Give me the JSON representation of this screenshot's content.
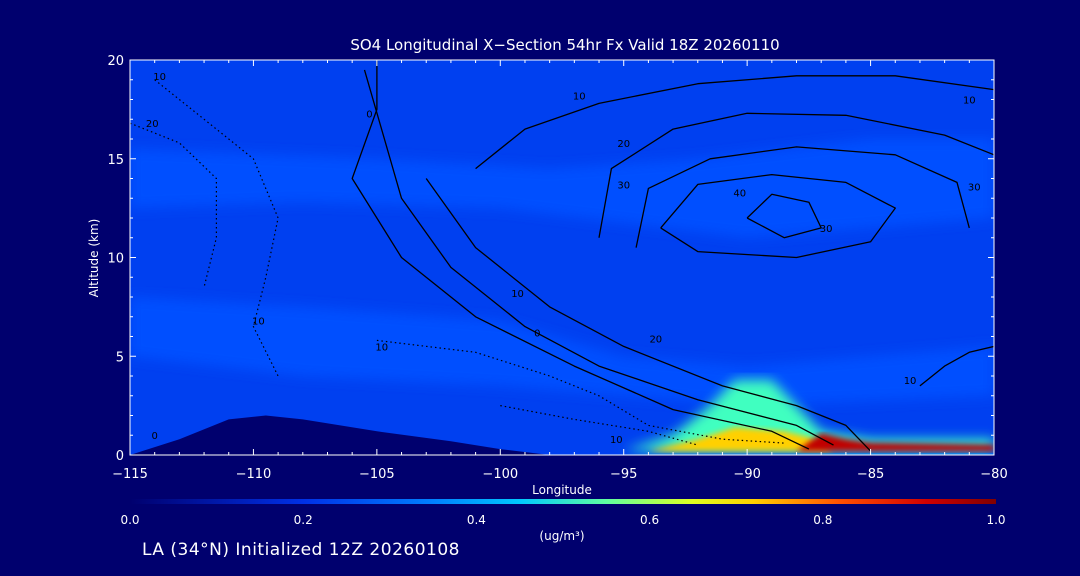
{
  "chart_data": {
    "type": "heatmap",
    "title": "SO4 Longitudinal X−Section 54hr  Fx Valid 18Z 20260110",
    "xlabel": "Longitude",
    "ylabel": "Altitude (km)",
    "xlim": [
      -115,
      -80
    ],
    "ylim": [
      0,
      20
    ],
    "x_ticks": [
      -115,
      -110,
      -105,
      -100,
      -95,
      -90,
      -85,
      -80
    ],
    "x_tick_labels": [
      "−115",
      "−110",
      "−105",
      "−100",
      "−95",
      "−90",
      "−85",
      "−80"
    ],
    "y_ticks": [
      0,
      5,
      10,
      15,
      20
    ],
    "y_tick_labels": [
      "0",
      "5",
      "10",
      "15",
      "20"
    ],
    "colorbar": {
      "label": "(ug/m³)",
      "min": 0.0,
      "max": 1.0,
      "ticks": [
        0.0,
        0.2,
        0.4,
        0.6,
        0.8,
        1.0
      ],
      "tick_labels": [
        "0.0",
        "0.2",
        "0.4",
        "0.6",
        "0.8",
        "1.0"
      ],
      "colors": [
        "#00006e",
        "#0020c8",
        "#0050ff",
        "#00b4ff",
        "#40ffc0",
        "#c0ff40",
        "#ffd000",
        "#ff5000",
        "#c00000",
        "#800000"
      ]
    },
    "fill_regions": [
      {
        "name": "upper-band",
        "value": 0.25,
        "points": [
          [
            -115,
            15.5
          ],
          [
            -105,
            15
          ],
          [
            -98,
            14.5
          ],
          [
            -92,
            15
          ],
          [
            -85,
            16
          ],
          [
            -80,
            16
          ],
          [
            -80,
            12
          ],
          [
            -90,
            11
          ],
          [
            -100,
            12.5
          ],
          [
            -108,
            12.8
          ],
          [
            -115,
            12.5
          ]
        ]
      },
      {
        "name": "mid-band",
        "value": 0.2,
        "points": [
          [
            -115,
            8
          ],
          [
            -108,
            7.5
          ],
          [
            -100,
            6.8
          ],
          [
            -95,
            5
          ],
          [
            -90,
            4.5
          ],
          [
            -85,
            5
          ],
          [
            -80,
            5.5
          ],
          [
            -80,
            3
          ],
          [
            -90,
            2.5
          ],
          [
            -100,
            3.5
          ],
          [
            -108,
            4
          ],
          [
            -115,
            5
          ]
        ]
      },
      {
        "name": "pbl-plume",
        "value": 0.45,
        "points": [
          [
            -95,
            0.2
          ],
          [
            -93,
            1
          ],
          [
            -91.5,
            2.5
          ],
          [
            -90.5,
            3.8
          ],
          [
            -89,
            3.8
          ],
          [
            -88,
            2.5
          ],
          [
            -87,
            1.2
          ],
          [
            -85,
            0.8
          ],
          [
            -80,
            0.8
          ],
          [
            -80,
            0.2
          ]
        ]
      },
      {
        "name": "pbl-core",
        "value": 0.65,
        "points": [
          [
            -94,
            0.2
          ],
          [
            -92,
            0.8
          ],
          [
            -90.5,
            1.4
          ],
          [
            -88.5,
            1.2
          ],
          [
            -87.5,
            0.9
          ],
          [
            -86.5,
            0.2
          ]
        ]
      },
      {
        "name": "pbl-max",
        "value": 0.9,
        "points": [
          [
            -88,
            0.2
          ],
          [
            -87,
            1.1
          ],
          [
            -86,
            0.8
          ],
          [
            -85,
            0.6
          ],
          [
            -80,
            0.5
          ],
          [
            -80,
            0.2
          ]
        ]
      },
      {
        "name": "terrain",
        "value": 0.0,
        "points": [
          [
            -115,
            0
          ],
          [
            -113,
            0.8
          ],
          [
            -111,
            1.8
          ],
          [
            -109.5,
            2.0
          ],
          [
            -108,
            1.8
          ],
          [
            -105,
            1.2
          ],
          [
            -102,
            0.7
          ],
          [
            -100,
            0.3
          ],
          [
            -98,
            0
          ],
          [
            -115,
            0
          ]
        ]
      }
    ],
    "contours": [
      {
        "value": 10,
        "style": "solid",
        "points": [
          [
            -101,
            14.5
          ],
          [
            -99,
            16.5
          ],
          [
            -96,
            17.8
          ],
          [
            -92,
            18.8
          ],
          [
            -88,
            19.2
          ],
          [
            -84,
            19.2
          ],
          [
            -80,
            18.5
          ]
        ]
      },
      {
        "value": 20,
        "style": "solid",
        "points": [
          [
            -96,
            11
          ],
          [
            -95.5,
            14.5
          ],
          [
            -93,
            16.5
          ],
          [
            -90,
            17.3
          ],
          [
            -86,
            17.2
          ],
          [
            -82,
            16.2
          ],
          [
            -80,
            15.2
          ]
        ]
      },
      {
        "value": 30,
        "style": "solid",
        "points": [
          [
            -94.5,
            10.5
          ],
          [
            -94,
            13.5
          ],
          [
            -91.5,
            15
          ],
          [
            -88,
            15.6
          ],
          [
            -84,
            15.2
          ],
          [
            -81.5,
            13.8
          ],
          [
            -81,
            11.5
          ]
        ]
      },
      {
        "value": 40,
        "style": "solid",
        "points": [
          [
            -93.5,
            11.5
          ],
          [
            -92,
            13.7
          ],
          [
            -89,
            14.2
          ],
          [
            -86,
            13.8
          ],
          [
            -84,
            12.5
          ],
          [
            -85,
            10.8
          ],
          [
            -88,
            10
          ],
          [
            -92,
            10.3
          ],
          [
            -93.5,
            11.5
          ]
        ]
      },
      {
        "value": 50,
        "style": "solid",
        "points": [
          [
            -90,
            12
          ],
          [
            -89,
            13.2
          ],
          [
            -87.5,
            12.8
          ],
          [
            -87,
            11.5
          ],
          [
            -88.5,
            11
          ],
          [
            -90,
            12
          ]
        ]
      },
      {
        "value": 20,
        "style": "solid",
        "points": [
          [
            -103,
            14
          ],
          [
            -101,
            10.5
          ],
          [
            -98,
            7.5
          ],
          [
            -95,
            5.5
          ],
          [
            -91,
            3.5
          ],
          [
            -88,
            2.5
          ],
          [
            -86,
            1.5
          ],
          [
            -85,
            0.2
          ]
        ]
      },
      {
        "value": 10,
        "style": "solid",
        "points": [
          [
            -105.5,
            19.5
          ],
          [
            -104,
            13
          ],
          [
            -102,
            9.5
          ],
          [
            -99,
            6.5
          ],
          [
            -96,
            4.5
          ],
          [
            -92,
            2.8
          ],
          [
            -88,
            1.5
          ],
          [
            -86.5,
            0.5
          ]
        ]
      },
      {
        "value": 0,
        "style": "solid",
        "points": [
          [
            -105,
            20
          ],
          [
            -105,
            17.5
          ],
          [
            -106,
            14
          ],
          [
            -104,
            10
          ],
          [
            -101,
            7
          ],
          [
            -97,
            4.5
          ],
          [
            -93,
            2.3
          ],
          [
            -89,
            1.2
          ],
          [
            -87.5,
            0.3
          ]
        ]
      },
      {
        "value": 10,
        "style": "solid",
        "points": [
          [
            -83,
            3.5
          ],
          [
            -82,
            4.5
          ],
          [
            -81,
            5.2
          ],
          [
            -80,
            5.5
          ]
        ]
      },
      {
        "value": -10,
        "style": "dotted",
        "points": [
          [
            -114,
            19
          ],
          [
            -112,
            17
          ],
          [
            -110,
            15
          ],
          [
            -109,
            12
          ],
          [
            -109.5,
            9
          ],
          [
            -110,
            6.5
          ],
          [
            -109,
            4
          ]
        ]
      },
      {
        "value": -20,
        "style": "dotted",
        "points": [
          [
            -115,
            16.8
          ],
          [
            -113,
            15.8
          ],
          [
            -111.5,
            14
          ],
          [
            -111.5,
            11
          ],
          [
            -112,
            8.5
          ]
        ]
      },
      {
        "value": -10,
        "style": "dotted",
        "points": [
          [
            -105,
            5.8
          ],
          [
            -101,
            5.2
          ],
          [
            -98,
            4
          ],
          [
            -96,
            3
          ],
          [
            -94,
            1.5
          ],
          [
            -91,
            0.8
          ],
          [
            -88.5,
            0.6
          ]
        ]
      },
      {
        "value": -10,
        "style": "dotted",
        "points": [
          [
            -100,
            2.5
          ],
          [
            -97,
            1.8
          ],
          [
            -94,
            1.2
          ],
          [
            -92,
            0.5
          ]
        ]
      }
    ],
    "contour_labels": [
      {
        "text": "10",
        "lon": -113.8,
        "lat": 19
      },
      {
        "text": "20",
        "lon": -114.1,
        "lat": 16.6
      },
      {
        "text": "0",
        "lon": -105.3,
        "lat": 17.1
      },
      {
        "text": "10",
        "lon": -96.8,
        "lat": 18.0
      },
      {
        "text": "10",
        "lon": -81,
        "lat": 17.8
      },
      {
        "text": "20",
        "lon": -95,
        "lat": 15.6
      },
      {
        "text": "30",
        "lon": -95,
        "lat": 13.5
      },
      {
        "text": "40",
        "lon": -90.3,
        "lat": 13.1
      },
      {
        "text": "30",
        "lon": -80.8,
        "lat": 13.4
      },
      {
        "text": "30",
        "lon": -86.8,
        "lat": 11.3
      },
      {
        "text": "10",
        "lon": -99.3,
        "lat": 8.0
      },
      {
        "text": "0",
        "lon": -98.5,
        "lat": 6.0
      },
      {
        "text": "20",
        "lon": -93.7,
        "lat": 5.7
      },
      {
        "text": "10",
        "lon": -109.8,
        "lat": 6.6
      },
      {
        "text": "10",
        "lon": -104.8,
        "lat": 5.3
      },
      {
        "text": "10",
        "lon": -83.4,
        "lat": 3.6
      },
      {
        "text": "10",
        "lon": -95.3,
        "lat": 0.6
      },
      {
        "text": "0",
        "lon": -114,
        "lat": 0.8
      }
    ]
  },
  "footer": {
    "text": "LA (34°N) Initialized 12Z 20260108"
  }
}
